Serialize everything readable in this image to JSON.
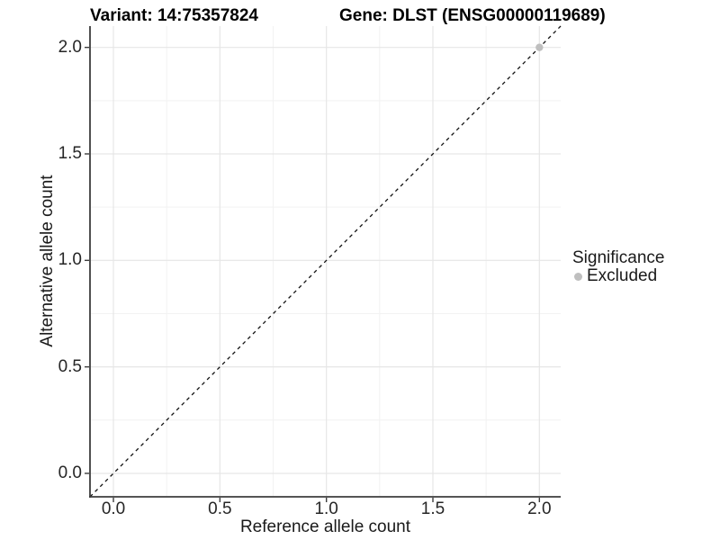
{
  "titles": {
    "variant": "Variant: 14:75357824",
    "gene": "Gene: DLST (ENSG00000119689)"
  },
  "axes": {
    "x_label": "Reference allele count",
    "y_label": "Alternative allele count"
  },
  "legend": {
    "title": "Significance",
    "items": [
      {
        "label": "Excluded",
        "color": "#bfbfbf"
      }
    ]
  },
  "colors": {
    "background": "#ffffff",
    "axis_line": "#3d3d3d",
    "tick_mark": "#3d3d3d",
    "grid_major": "#e6e6e6",
    "grid_minor": "#f2f2f2",
    "reference_line": "#111111",
    "point": "#bfbfbf"
  },
  "chart_data": {
    "type": "scatter",
    "title": "Variant: 14:75357824   Gene: DLST (ENSG00000119689)",
    "xlabel": "Reference allele count",
    "ylabel": "Alternative allele count",
    "xlim": [
      -0.11,
      2.1
    ],
    "ylim": [
      -0.11,
      2.1
    ],
    "x_ticks": [
      0.0,
      0.5,
      1.0,
      1.5,
      2.0
    ],
    "y_ticks": [
      0.0,
      0.5,
      1.0,
      1.5,
      2.0
    ],
    "x_tick_labels": [
      "0.0",
      "0.5",
      "1.0",
      "1.5",
      "2.0"
    ],
    "y_tick_labels": [
      "0.0",
      "0.5",
      "1.0",
      "1.5",
      "2.0"
    ],
    "x_minor_ticks": [
      0.25,
      0.75,
      1.25,
      1.75
    ],
    "y_minor_ticks": [
      0.25,
      0.75,
      1.25,
      1.75
    ],
    "grid": true,
    "legend_position": "right",
    "legend_title": "Significance",
    "series": [
      {
        "name": "Excluded",
        "color": "#bfbfbf",
        "marker": "circle",
        "points": [
          {
            "x": 2.0,
            "y": 2.0
          }
        ]
      }
    ],
    "reference_line": {
      "kind": "abline",
      "slope": 1,
      "intercept": 0,
      "style": "dashed",
      "color": "#111111"
    }
  }
}
